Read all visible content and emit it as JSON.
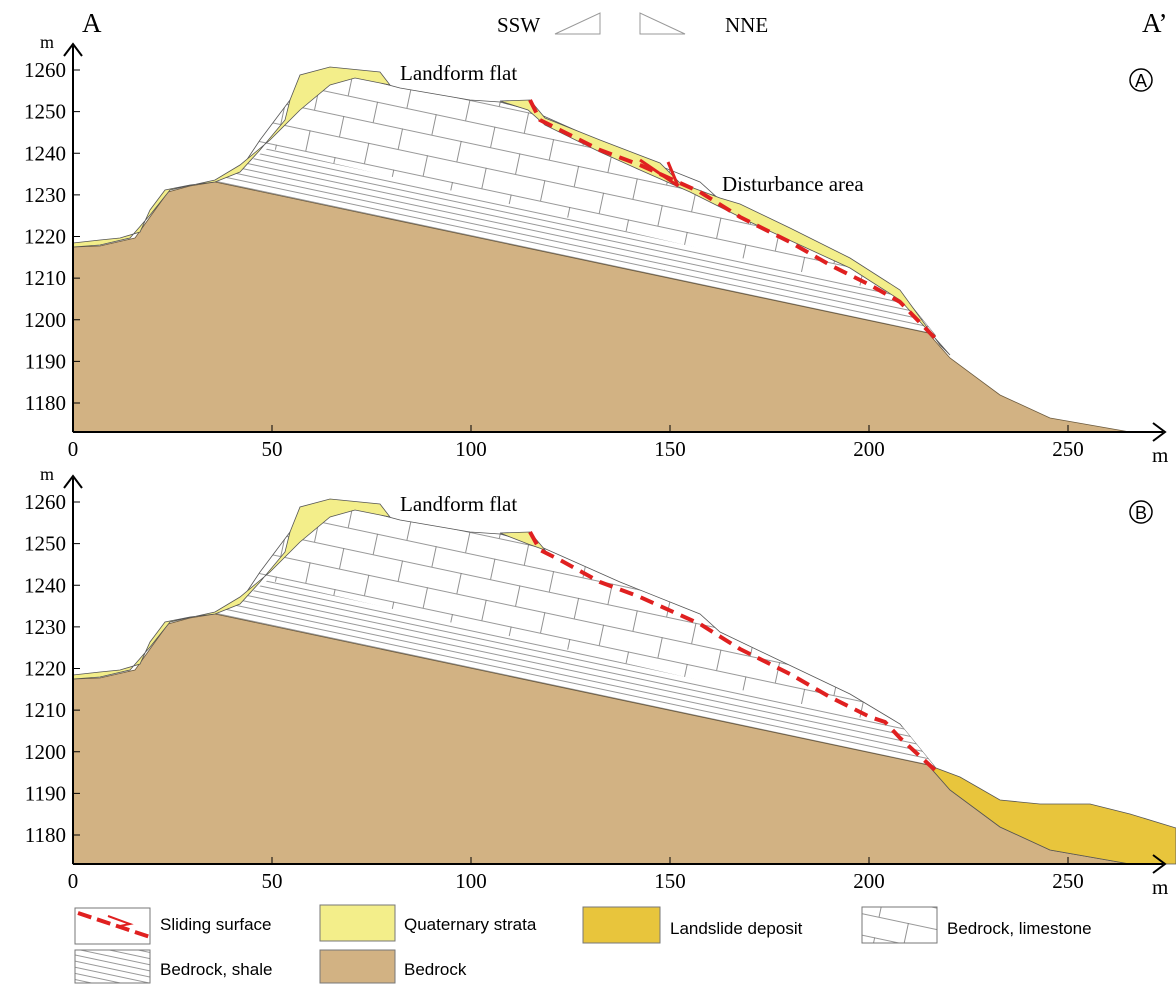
{
  "header": {
    "left": "A",
    "right": "A’",
    "dir_left": "SSW",
    "dir_right": "NNE"
  },
  "panels": [
    {
      "label": "A",
      "y_unit": "m",
      "x_unit": "m",
      "yticks": [
        1180,
        1190,
        1200,
        1210,
        1220,
        1230,
        1240,
        1250,
        1260
      ],
      "xticks": [
        0,
        50,
        100,
        150,
        200,
        250
      ],
      "annotations": [
        "Landform flat",
        "Disturbance area"
      ]
    },
    {
      "label": "B",
      "y_unit": "m",
      "x_unit": "m",
      "yticks": [
        1180,
        1190,
        1200,
        1210,
        1220,
        1230,
        1240,
        1250,
        1260
      ],
      "xticks": [
        0,
        50,
        100,
        150,
        200,
        250
      ],
      "annotations": [
        "Landform flat"
      ]
    }
  ],
  "legend": [
    "Sliding surface",
    "Quaternary strata",
    "Landslide deposit",
    "Bedrock, limestone",
    "Bedrock, shale",
    "Bedrock"
  ]
}
